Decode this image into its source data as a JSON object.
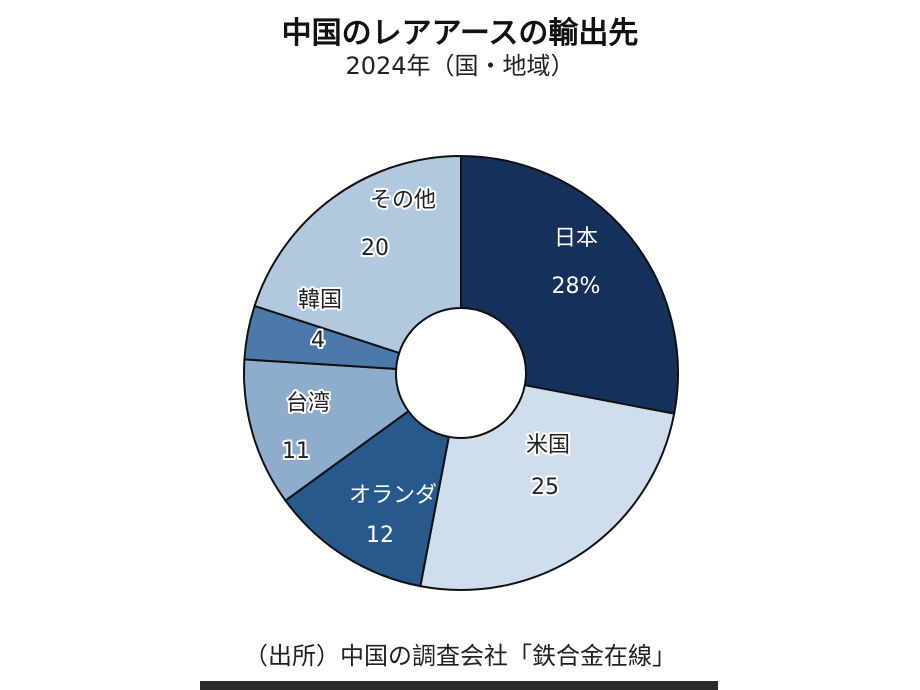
{
  "chart_data": {
    "type": "pie",
    "variant": "donut",
    "title": "中国のレアアースの輸出先",
    "subtitle": "2024年（国・地域）",
    "source": "（出所）中国の調査会社「鉄合金在線」",
    "unit": "%",
    "start": "12 o'clock, clockwise",
    "slices": [
      {
        "label": "日本",
        "value": 28,
        "value_label": "28%",
        "color": "#15305a",
        "text_color": "#ffffff"
      },
      {
        "label": "米国",
        "value": 25,
        "value_label": "25",
        "color": "#cfdeec",
        "text_color": "#222222"
      },
      {
        "label": "オランダ",
        "value": 12,
        "value_label": "12",
        "color": "#27598c",
        "text_color": "#ffffff"
      },
      {
        "label": "台湾",
        "value": 11,
        "value_label": "11",
        "color": "#8eaccc",
        "text_color": "#222222"
      },
      {
        "label": "韓国",
        "value": 4,
        "value_label": "4",
        "color": "#4b7aaa",
        "text_color": "#222222"
      },
      {
        "label": "その他",
        "value": 20,
        "value_label": "20",
        "color": "#b1c9de",
        "text_color": "#222222"
      }
    ]
  }
}
